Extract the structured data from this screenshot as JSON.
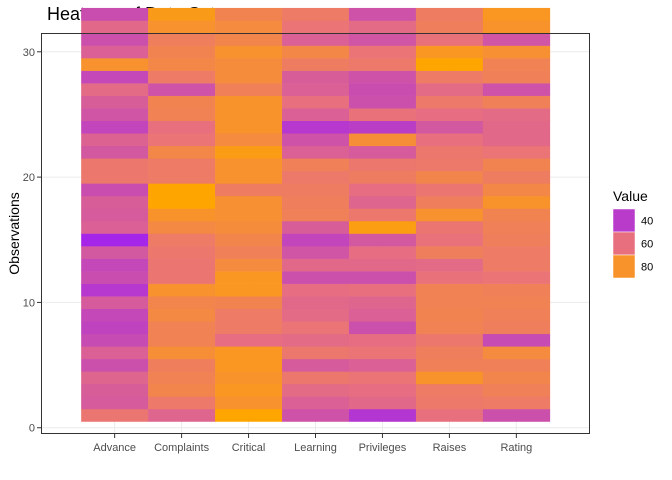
{
  "chart_data": {
    "type": "heatmap",
    "title": "Heatmap of Data Set",
    "xlabel": "",
    "ylabel": "Observations",
    "categories": [
      "Advance",
      "Complaints",
      "Critical",
      "Learning",
      "Privileges",
      "Raises",
      "Rating"
    ],
    "y_ticks": [
      0,
      10,
      20,
      30
    ],
    "ylim": [
      -0.5,
      31.5
    ],
    "grid": true,
    "legend": {
      "title": "Value",
      "position": "right",
      "breaks": [
        40,
        60,
        80
      ],
      "colors": {
        "low": "#a020f0",
        "mid": "#e8707e",
        "high": "#ffa500"
      },
      "range": [
        30,
        90
      ]
    },
    "rows": [
      {
        "obs": 1,
        "values": [
          63,
          56,
          90,
          49,
          38,
          60,
          48
        ]
      },
      {
        "obs": 2,
        "values": [
          52,
          65,
          79,
          54,
          57,
          65,
          66
        ]
      },
      {
        "obs": 3,
        "values": [
          53,
          72,
          82,
          58,
          59,
          66,
          69
        ]
      },
      {
        "obs": 4,
        "values": [
          56,
          70,
          80,
          64,
          62,
          80,
          72
        ]
      },
      {
        "obs": 5,
        "values": [
          48,
          68,
          82,
          52,
          54,
          69,
          69
        ]
      },
      {
        "obs": 6,
        "values": [
          54,
          77,
          82,
          64,
          62,
          68,
          75
        ]
      },
      {
        "obs": 7,
        "values": [
          46,
          70,
          59,
          58,
          59,
          64,
          46
        ]
      },
      {
        "obs": 8,
        "values": [
          43,
          70,
          66,
          62,
          48,
          70,
          68
        ]
      },
      {
        "obs": 9,
        "values": [
          45,
          74,
          66,
          58,
          54,
          71,
          69
        ]
      },
      {
        "obs": 10,
        "values": [
          52,
          72,
          71,
          57,
          56,
          70,
          70
        ]
      },
      {
        "obs": 11,
        "values": [
          39,
          79,
          82,
          59,
          60,
          70,
          69
        ]
      },
      {
        "obs": 12,
        "values": [
          47,
          63,
          82,
          48,
          48,
          61,
          62
        ]
      },
      {
        "obs": 13,
        "values": [
          45,
          63,
          75,
          57,
          57,
          58,
          66
        ]
      },
      {
        "obs": 14,
        "values": [
          51,
          64,
          69,
          50,
          59,
          68,
          66
        ]
      },
      {
        "obs": 15,
        "values": [
          32,
          66,
          72,
          44,
          51,
          61,
          68
        ]
      },
      {
        "obs": 16,
        "values": [
          54,
          74,
          76,
          53,
          86,
          63,
          69
        ]
      },
      {
        "obs": 17,
        "values": [
          52,
          80,
          78,
          69,
          64,
          79,
          71
        ]
      },
      {
        "obs": 18,
        "values": [
          53,
          90,
          78,
          68,
          56,
          68,
          80
        ]
      },
      {
        "obs": 19,
        "values": [
          47,
          90,
          67,
          67,
          59,
          63,
          73
        ]
      },
      {
        "obs": 20,
        "values": [
          64,
          66,
          79,
          65,
          67,
          72,
          67
        ]
      },
      {
        "obs": 21,
        "values": [
          64,
          66,
          79,
          69,
          64,
          65,
          71
        ]
      },
      {
        "obs": 22,
        "values": [
          51,
          73,
          85,
          54,
          52,
          64,
          62
        ]
      },
      {
        "obs": 23,
        "values": [
          55,
          62,
          75,
          49,
          77,
          60,
          57
        ]
      },
      {
        "obs": 24,
        "values": [
          44,
          60,
          80,
          39,
          41,
          51,
          57
        ]
      },
      {
        "obs": 25,
        "values": [
          50,
          70,
          80,
          54,
          61,
          59,
          58
        ]
      },
      {
        "obs": 26,
        "values": [
          53,
          71,
          80,
          60,
          48,
          65,
          69
        ]
      },
      {
        "obs": 27,
        "values": [
          58,
          49,
          69,
          54,
          47,
          58,
          49
        ]
      },
      {
        "obs": 28,
        "values": [
          45,
          66,
          76,
          53,
          49,
          66,
          69
        ]
      },
      {
        "obs": 29,
        "values": [
          79,
          73,
          76,
          67,
          65,
          90,
          70
        ]
      },
      {
        "obs": 30,
        "values": [
          54,
          71,
          79,
          73,
          62,
          82,
          78
        ]
      },
      {
        "obs": 31,
        "values": [
          48,
          68,
          72,
          54,
          50,
          61,
          50
        ]
      },
      {
        "obs": 32,
        "values": [
          57,
          79,
          75,
          62,
          58,
          68,
          80
        ]
      },
      {
        "obs": 33,
        "values": [
          47,
          84,
          71,
          66,
          49,
          67,
          82
        ]
      }
    ]
  }
}
